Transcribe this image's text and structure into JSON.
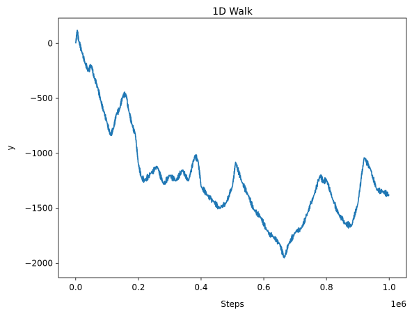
{
  "chart_data": {
    "type": "line",
    "title": "1D Walk",
    "xlabel": "Steps",
    "ylabel": "y",
    "x_offset_text": "1e6",
    "xlim": [
      -55000,
      1055000
    ],
    "ylim": [
      -2130,
      230
    ],
    "x_ticks": [
      0.0,
      200000,
      400000,
      600000,
      800000,
      1000000
    ],
    "x_tick_labels": [
      "0.0",
      "0.2",
      "0.4",
      "0.6",
      "0.8",
      "1.0"
    ],
    "y_ticks": [
      0,
      -500,
      -1000,
      -1500,
      -2000
    ],
    "y_tick_labels": [
      "0",
      "−500",
      "−1000",
      "−1500",
      "−2000"
    ],
    "grid": false,
    "series": [
      {
        "color": "#1f77b4",
        "x": [
          0,
          5000,
          10000,
          20000,
          30000,
          40000,
          50000,
          60000,
          70000,
          80000,
          90000,
          100000,
          110000,
          120000,
          130000,
          140000,
          150000,
          160000,
          170000,
          180000,
          190000,
          200000,
          210000,
          220000,
          240000,
          260000,
          280000,
          300000,
          320000,
          340000,
          360000,
          380000,
          390000,
          400000,
          420000,
          440000,
          460000,
          480000,
          500000,
          510000,
          530000,
          550000,
          570000,
          590000,
          610000,
          630000,
          650000,
          665000,
          680000,
          700000,
          720000,
          740000,
          760000,
          780000,
          790000,
          800000,
          820000,
          840000,
          860000,
          880000,
          900000,
          920000,
          940000,
          960000,
          980000,
          1000000
        ],
        "y": [
          0,
          120,
          20,
          -80,
          -180,
          -250,
          -200,
          -320,
          -400,
          -520,
          -620,
          -720,
          -830,
          -780,
          -640,
          -600,
          -480,
          -460,
          -620,
          -740,
          -820,
          -1100,
          -1220,
          -1250,
          -1180,
          -1120,
          -1280,
          -1200,
          -1250,
          -1150,
          -1250,
          -1020,
          -1060,
          -1300,
          -1380,
          -1440,
          -1500,
          -1450,
          -1300,
          -1080,
          -1260,
          -1380,
          -1520,
          -1580,
          -1700,
          -1760,
          -1820,
          -1950,
          -1820,
          -1720,
          -1680,
          -1540,
          -1380,
          -1200,
          -1260,
          -1240,
          -1420,
          -1560,
          -1640,
          -1660,
          -1460,
          -1040,
          -1140,
          -1330,
          -1350,
          -1380
        ]
      }
    ]
  }
}
